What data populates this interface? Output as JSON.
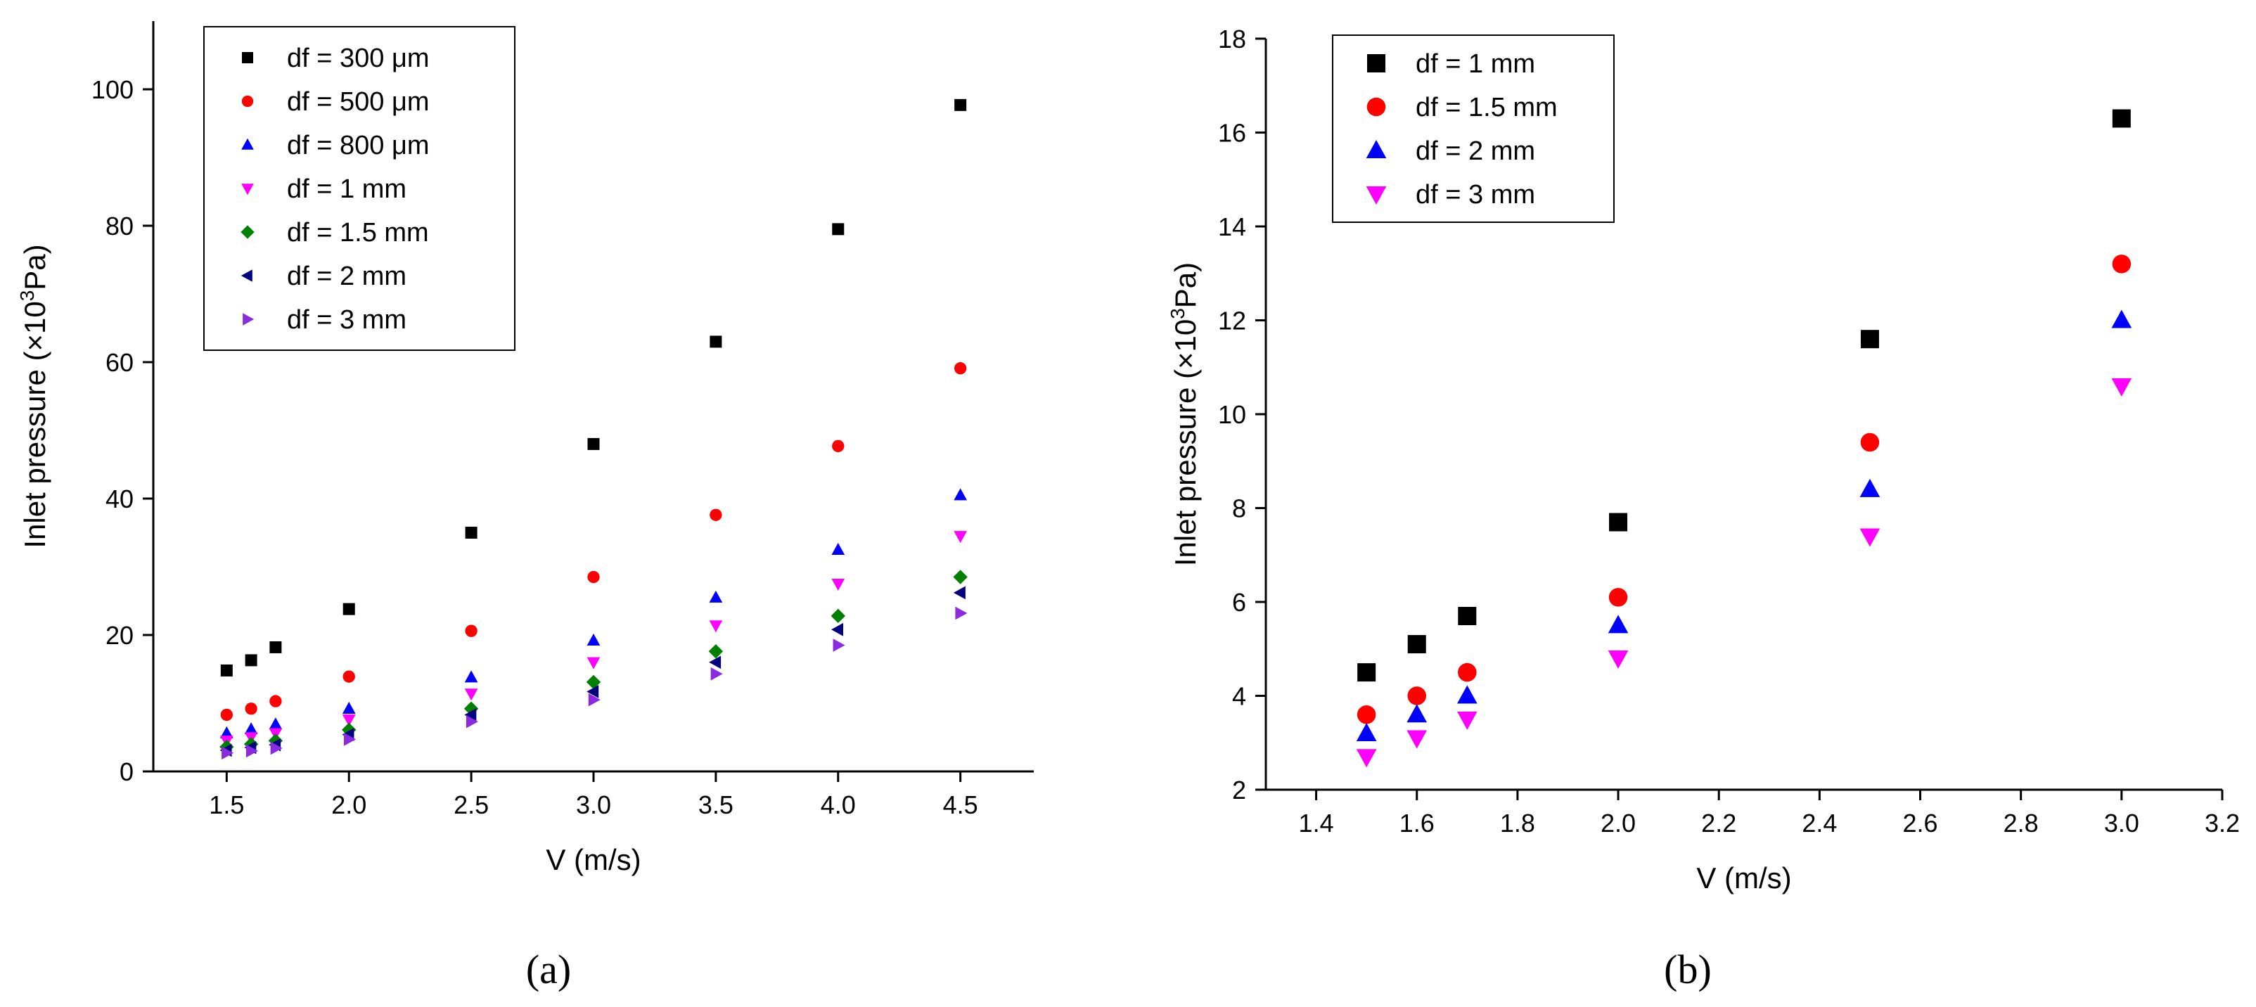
{
  "chart_data": [
    {
      "type": "scatter",
      "panel_label": "(a)",
      "xlabel": "V (m/s)",
      "ylabel_main": "Inlet pressure (×10",
      "ylabel_sup": "3",
      "ylabel_tail": "Pa)",
      "xlim": [
        1.2,
        4.8
      ],
      "ylim": [
        0,
        110
      ],
      "xticks": [
        1.5,
        2.0,
        2.5,
        3.0,
        3.5,
        4.0,
        4.5
      ],
      "yticks": [
        0,
        20,
        40,
        60,
        80,
        100
      ],
      "tick_decimals": 1,
      "legend_position": "top-left",
      "x": [
        1.5,
        1.6,
        1.7,
        2.0,
        2.5,
        3.0,
        3.5,
        4.0,
        4.5
      ],
      "series": [
        {
          "name": "df = 300 μm",
          "marker": "square",
          "color": "#000000",
          "values": [
            14.8,
            16.3,
            18.2,
            23.8,
            35.0,
            48.0,
            63.0,
            79.5,
            97.7
          ]
        },
        {
          "name": "df = 500 μm",
          "marker": "circle",
          "color": "#ff0000",
          "values": [
            8.3,
            9.2,
            10.3,
            13.9,
            20.6,
            28.5,
            37.6,
            47.7,
            59.1
          ]
        },
        {
          "name": "df = 800 μm",
          "marker": "triangle-up",
          "color": "#0000ff",
          "values": [
            5.6,
            6.2,
            6.9,
            9.2,
            13.8,
            19.2,
            25.5,
            32.5,
            40.5
          ]
        },
        {
          "name": "df = 1 mm",
          "marker": "triangle-down",
          "color": "#ff00ff",
          "values": [
            4.5,
            5.0,
            5.6,
            7.6,
            11.4,
            16.0,
            21.4,
            27.5,
            34.5
          ]
        },
        {
          "name": "df = 1.5 mm",
          "marker": "diamond",
          "color": "#008000",
          "values": [
            3.6,
            4.0,
            4.5,
            6.1,
            9.2,
            13.1,
            17.6,
            22.8,
            28.5
          ]
        },
        {
          "name": "df = 2 mm",
          "marker": "triangle-left",
          "color": "#000080",
          "values": [
            3.1,
            3.5,
            3.9,
            5.4,
            8.3,
            11.7,
            16.0,
            20.8,
            26.2
          ]
        },
        {
          "name": "df = 3 mm",
          "marker": "triangle-right",
          "color": "#8a2be2",
          "values": [
            2.7,
            3.0,
            3.4,
            4.7,
            7.3,
            10.5,
            14.3,
            18.5,
            23.2
          ]
        }
      ]
    },
    {
      "type": "scatter",
      "panel_label": "(b)",
      "xlabel": "V (m/s)",
      "ylabel_main": "Inlet pressure (×10",
      "ylabel_sup": "3",
      "ylabel_tail": "Pa)",
      "xlim": [
        1.3,
        3.2
      ],
      "ylim": [
        2,
        18
      ],
      "xticks": [
        1.4,
        1.6,
        1.8,
        2.0,
        2.2,
        2.4,
        2.6,
        2.8,
        3.0,
        3.2
      ],
      "yticks": [
        2,
        4,
        6,
        8,
        10,
        12,
        14,
        16,
        18
      ],
      "tick_decimals": 1,
      "legend_position": "top-left",
      "x": [
        1.5,
        1.6,
        1.7,
        2.0,
        2.5,
        3.0
      ],
      "series": [
        {
          "name": "df = 1 mm",
          "marker": "square",
          "color": "#000000",
          "values": [
            4.5,
            5.1,
            5.7,
            7.7,
            11.6,
            16.3
          ]
        },
        {
          "name": "df = 1.5 mm",
          "marker": "circle",
          "color": "#ff0000",
          "values": [
            3.6,
            4.0,
            4.5,
            6.1,
            9.4,
            13.2
          ]
        },
        {
          "name": "df = 2 mm",
          "marker": "triangle-up",
          "color": "#0000ff",
          "values": [
            3.2,
            3.6,
            4.0,
            5.5,
            8.4,
            12.0
          ]
        },
        {
          "name": "df = 3 mm",
          "marker": "triangle-down",
          "color": "#ff00ff",
          "values": [
            2.7,
            3.1,
            3.5,
            4.8,
            7.4,
            10.6
          ]
        }
      ]
    }
  ]
}
